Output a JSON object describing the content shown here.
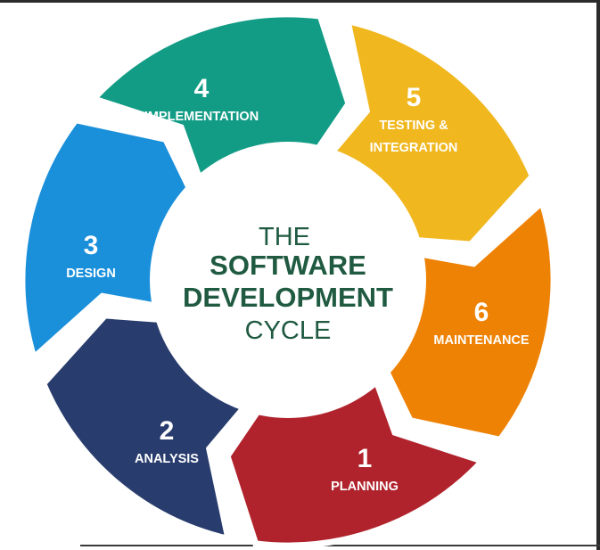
{
  "center": {
    "line1": "THE",
    "line2": "SOFTWARE",
    "line3": "DEVELOPMENT",
    "line4": "CYCLE",
    "color": "#1f5a41"
  },
  "stages": [
    {
      "number": "1",
      "label_lines": [
        "PLANNING"
      ],
      "color": "#b0232d"
    },
    {
      "number": "2",
      "label_lines": [
        "ANALYSIS"
      ],
      "color": "#283c6d"
    },
    {
      "number": "3",
      "label_lines": [
        "DESIGN"
      ],
      "color": "#1a8fda"
    },
    {
      "number": "4",
      "label_lines": [
        "IMPLEMENTATION"
      ],
      "color": "#129c85"
    },
    {
      "number": "5",
      "label_lines": [
        "TESTING &",
        "INTEGRATION"
      ],
      "color": "#f0b71f"
    },
    {
      "number": "6",
      "label_lines": [
        "MAINTENANCE"
      ],
      "color": "#ee8205"
    }
  ]
}
